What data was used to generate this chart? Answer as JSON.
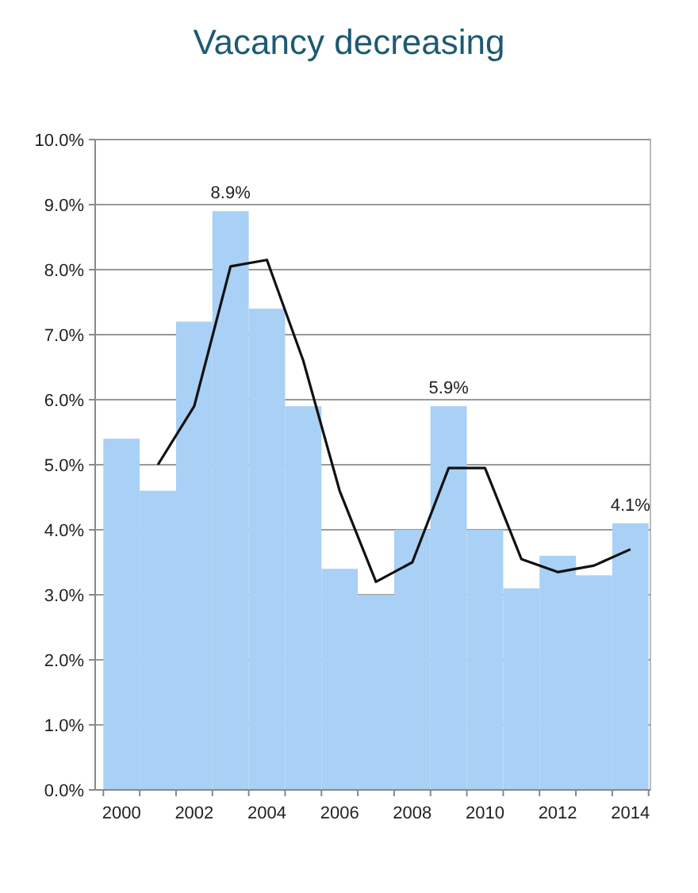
{
  "chart_data": {
    "type": "bar",
    "title": "Vacancy decreasing",
    "categories": [
      "2000",
      null,
      "2002",
      null,
      "2004",
      null,
      "2006",
      null,
      "2008",
      null,
      "2010",
      null,
      "2012",
      null,
      "2014"
    ],
    "series": [
      {
        "color": "#a9d0f5",
        "values": [
          5.4,
          4.6,
          7.2,
          8.9,
          7.4,
          5.9,
          3.4,
          3.0,
          4.0,
          5.9,
          4.0,
          3.1,
          3.6,
          3.3,
          4.1
        ],
        "value_labels": [
          null,
          null,
          null,
          "8.9%",
          null,
          null,
          null,
          null,
          null,
          "5.9%",
          null,
          null,
          null,
          null,
          "4.1%"
        ]
      },
      {
        "type": "line",
        "color": "#111111",
        "values": [
          null,
          5.0,
          5.9,
          8.05,
          8.15,
          6.6,
          4.6,
          3.2,
          3.5,
          4.95,
          4.95,
          3.55,
          3.35,
          3.45,
          3.7
        ]
      }
    ],
    "ylim": [
      0,
      10
    ],
    "yticks": [
      {
        "value": 0,
        "label": "0.0%"
      },
      {
        "value": 1,
        "label": "1.0%"
      },
      {
        "value": 2,
        "label": "2.0%"
      },
      {
        "value": 3,
        "label": "3.0%"
      },
      {
        "value": 4,
        "label": "4.0%"
      },
      {
        "value": 5,
        "label": "5.0%"
      },
      {
        "value": 6,
        "label": "6.0%"
      },
      {
        "value": 7,
        "label": "7.0%"
      },
      {
        "value": 8,
        "label": "8.0%"
      },
      {
        "value": 9,
        "label": "9.0%"
      },
      {
        "value": 10,
        "label": "10.0%"
      }
    ],
    "grid": "y",
    "marker": "none",
    "line_style": "solid"
  }
}
